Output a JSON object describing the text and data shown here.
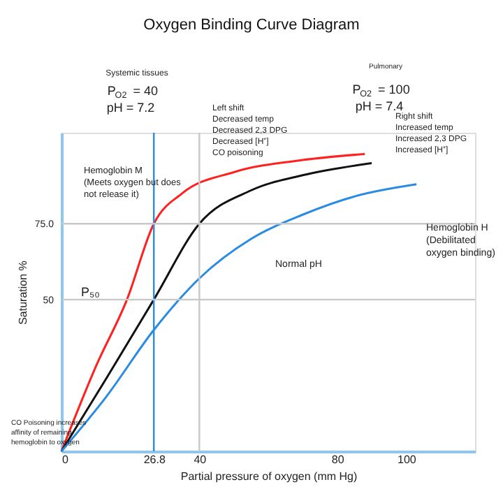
{
  "chart_data": {
    "type": "line",
    "title": "Oxygen Binding Curve Diagram",
    "xlabel": "Partial pressure of oxygen (mm Hg)",
    "ylabel": "Saturation %",
    "series": [
      {
        "color": "#ff2020",
        "x": [
          0,
          10,
          19,
          26.8,
          35,
          50,
          70,
          88
        ],
        "values": [
          0,
          28,
          50,
          75,
          85,
          92,
          96,
          98
        ]
      },
      {
        "color": "#111111",
        "x": [
          0,
          13,
          26.8,
          40,
          55,
          70,
          90
        ],
        "values": [
          0,
          24,
          50,
          75,
          86,
          91,
          95
        ]
      },
      {
        "color": "#2a8be0",
        "x": [
          0,
          13,
          26.8,
          40,
          55,
          70,
          85,
          103
        ],
        "values": [
          0,
          18,
          40,
          57,
          70,
          78,
          84,
          88
        ]
      }
    ],
    "xlim": [
      0,
      120
    ],
    "ylim": [
      0,
      105
    ],
    "xticks": [
      0,
      26.8,
      40,
      80,
      100
    ],
    "yticks": [
      50,
      {
        "value": 75,
        "label": "75.0"
      }
    ],
    "ref_lines": [
      {
        "axis": "x",
        "value": 26.8,
        "color": "#2a8be0"
      },
      {
        "axis": "x",
        "value": 40,
        "color": "#c8c8c8"
      },
      {
        "axis": "y",
        "value": 75,
        "color": "#c8c8c8"
      },
      {
        "axis": "y",
        "value": 50,
        "color": "#c8c8c8"
      }
    ],
    "annotations": [
      "Systemic tissues",
      "P$_{O2}$ = 40\npH = 7.2",
      "Pulmonary",
      "P$_{O2}$ = 100\npH = 7.4",
      "Left shift\nDecreased temp\nDecreased 2,3 DPG\nDecreased [H⁺]\nCO poisoning",
      "Right shift\nIncreased temp\nIncreased 2,3 DPG\nIncreased [H⁺]",
      "Hemoglobin M\n(Meets oxygen but does\nnot release it)",
      "Hemoglobin H\n(Debilitated\noxygen binding)",
      "Normal pH",
      "P₅₀",
      "CO Poisoning increases\naffinity of remaining\nhemoglobin to oxygen"
    ],
    "grid": false,
    "marker": "none",
    "line_style": "solid"
  }
}
